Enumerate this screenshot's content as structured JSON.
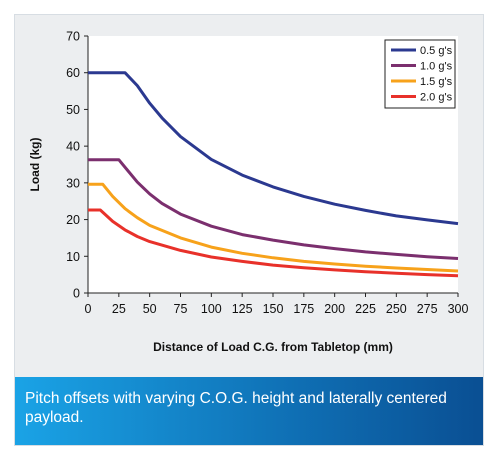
{
  "caption": "Pitch offsets with varying C.O.G. height and laterally centered payload.",
  "chart_data": {
    "type": "line",
    "title": "",
    "xlabel": "Distance of Load C.G. from Tabletop (mm)",
    "ylabel": "Load (kg)",
    "xlim": [
      0,
      300
    ],
    "ylim": [
      0,
      70
    ],
    "xticks": [
      0,
      25,
      50,
      75,
      100,
      125,
      150,
      175,
      200,
      225,
      250,
      275,
      300
    ],
    "yticks": [
      0,
      10,
      20,
      30,
      40,
      50,
      60,
      70
    ],
    "grid": false,
    "legend_position": "top-right",
    "series": [
      {
        "name": "0.5 g's",
        "color": "#2b3990",
        "x": [
          0,
          30,
          40,
          50,
          60,
          75,
          100,
          125,
          150,
          175,
          200,
          225,
          250,
          275,
          300
        ],
        "y": [
          60,
          60,
          56.5,
          51.7,
          47.7,
          42.6,
          36.4,
          32.1,
          28.9,
          26.3,
          24.2,
          22.5,
          21.0,
          19.9,
          18.9
        ]
      },
      {
        "name": "1.0 g's",
        "color": "#7b2f6e",
        "x": [
          0,
          25,
          40,
          50,
          60,
          75,
          100,
          125,
          150,
          175,
          200,
          225,
          250,
          275,
          300
        ],
        "y": [
          36.3,
          36.3,
          30.2,
          27.0,
          24.4,
          21.5,
          18.2,
          15.9,
          14.4,
          13.1,
          12.1,
          11.2,
          10.5,
          9.9,
          9.4
        ]
      },
      {
        "name": "1.5 g's",
        "color": "#f7a21b",
        "x": [
          0,
          12,
          20,
          30,
          40,
          50,
          75,
          100,
          125,
          150,
          175,
          200,
          225,
          250,
          275,
          300
        ],
        "y": [
          29.6,
          29.6,
          26.3,
          23.0,
          20.5,
          18.4,
          15.0,
          12.5,
          10.8,
          9.6,
          8.6,
          7.9,
          7.3,
          6.8,
          6.4,
          6.0
        ]
      },
      {
        "name": "2.0 g's",
        "color": "#e8312a",
        "x": [
          0,
          10,
          20,
          30,
          40,
          50,
          75,
          100,
          125,
          150,
          175,
          200,
          225,
          250,
          275,
          300
        ],
        "y": [
          22.6,
          22.6,
          19.5,
          17.2,
          15.4,
          14.0,
          11.6,
          9.8,
          8.6,
          7.6,
          6.9,
          6.3,
          5.8,
          5.4,
          5.0,
          4.7
        ]
      }
    ]
  }
}
